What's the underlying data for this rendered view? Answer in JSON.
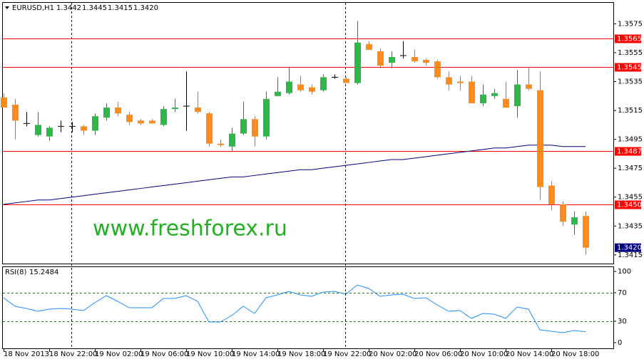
{
  "chart_data": [
    {
      "type": "candlestick",
      "title": "EURUSD,H1",
      "annotation": "www.freshforex.ru",
      "categories": [
        "18 Nov 2013",
        null,
        null,
        null,
        "18 Nov 22:00",
        null,
        null,
        null,
        "19 Nov 02:00",
        null,
        null,
        null,
        "19 Nov 06:00",
        null,
        null,
        null,
        "19 Nov 10:00",
        null,
        null,
        null,
        "19 Nov 14:00",
        null,
        null,
        null,
        "19 Nov 18:00",
        null,
        null,
        null,
        "19 Nov 22:00",
        null,
        null,
        null,
        "20 Nov 02:00",
        null,
        null,
        null,
        "20 Nov 06:00",
        null,
        null,
        null,
        "20 Nov 10:00",
        null,
        null,
        null,
        "20 Nov 14:00",
        null,
        null,
        null,
        "20 Nov 18:00",
        null,
        null,
        null
      ],
      "open": [
        1.3524,
        1.3519,
        1.3506,
        1.3498,
        1.3497,
        1.3504,
        1.3504,
        1.3504,
        1.3501,
        1.351,
        1.3517,
        1.3512,
        1.3508,
        1.3508,
        1.3505,
        1.3516,
        1.3518,
        1.3517,
        1.3513,
        1.3492,
        1.349,
        1.3499,
        1.3509,
        1.3497,
        1.3525,
        1.3527,
        1.3533,
        1.3531,
        1.3529,
        1.3538,
        1.3537,
        1.3534,
        1.3561,
        1.3556,
        1.3548,
        1.3553,
        1.3552,
        1.355,
        1.3549,
        1.3538,
        1.3535,
        1.3535,
        1.352,
        1.3525,
        1.3523,
        1.3518,
        1.3533,
        1.3529,
        1.3463,
        1.345,
        1.3436,
        1.3442
      ],
      "high": [
        1.3527,
        1.3523,
        1.3514,
        1.3514,
        1.3504,
        1.3508,
        1.3507,
        1.3505,
        1.3513,
        1.352,
        1.3521,
        1.3514,
        1.3509,
        1.3509,
        1.3518,
        1.3523,
        1.3542,
        1.3528,
        1.3514,
        1.3495,
        1.3503,
        1.3521,
        1.3511,
        1.3528,
        1.3538,
        1.3545,
        1.3539,
        1.3533,
        1.354,
        1.354,
        1.3538,
        1.3577,
        1.3563,
        1.3558,
        1.3556,
        1.3563,
        1.3557,
        1.3551,
        1.355,
        1.3542,
        1.3539,
        1.3539,
        1.3533,
        1.353,
        1.3535,
        1.3543,
        1.3545,
        1.3542,
        1.3466,
        1.3452,
        1.3445,
        1.3445
      ],
      "low": [
        1.3517,
        1.3495,
        1.3504,
        1.3497,
        1.3494,
        1.35,
        1.35,
        1.3498,
        1.3498,
        1.3508,
        1.3511,
        1.3505,
        1.3505,
        1.3506,
        1.3504,
        1.3514,
        1.3501,
        1.3513,
        1.349,
        1.349,
        1.3487,
        1.3498,
        1.349,
        1.3495,
        1.3525,
        1.3526,
        1.3528,
        1.3526,
        1.3528,
        1.3537,
        1.3534,
        1.3533,
        1.3557,
        1.3544,
        1.3544,
        1.3551,
        1.3548,
        1.3546,
        1.3537,
        1.3529,
        1.3529,
        1.352,
        1.3518,
        1.3523,
        1.3517,
        1.351,
        1.3529,
        1.3453,
        1.3446,
        1.3435,
        1.3429,
        1.3415
      ],
      "close": [
        1.3517,
        1.3508,
        1.3506,
        1.3505,
        1.3503,
        1.3504,
        1.3504,
        1.3501,
        1.3511,
        1.3517,
        1.3513,
        1.3507,
        1.3506,
        1.3506,
        1.3516,
        1.3517,
        1.3518,
        1.3514,
        1.3492,
        1.3491,
        1.3499,
        1.3509,
        1.3497,
        1.3523,
        1.3528,
        1.3535,
        1.3529,
        1.3528,
        1.3538,
        1.3538,
        1.3534,
        1.3562,
        1.3557,
        1.3546,
        1.3552,
        1.3553,
        1.3549,
        1.3548,
        1.3538,
        1.3533,
        1.3534,
        1.352,
        1.3526,
        1.3527,
        1.3517,
        1.3533,
        1.353,
        1.3462,
        1.345,
        1.3438,
        1.3441,
        1.342
      ],
      "up_color": "#2fb84a",
      "down_color": "#ff8c1a",
      "doji_color": "#000000",
      "moving_average": {
        "color": "#000080",
        "values": [
          1.345,
          1.3451,
          1.3452,
          1.3453,
          1.3453,
          1.3454,
          1.3455,
          1.3456,
          1.3457,
          1.3458,
          1.3459,
          1.346,
          1.3461,
          1.3462,
          1.3463,
          1.3464,
          1.3465,
          1.3466,
          1.3467,
          1.3468,
          1.3469,
          1.3469,
          1.347,
          1.3471,
          1.3472,
          1.3473,
          1.3474,
          1.3474,
          1.3475,
          1.3476,
          1.3477,
          1.3478,
          1.3479,
          1.348,
          1.3481,
          1.3481,
          1.3482,
          1.3483,
          1.3484,
          1.3485,
          1.3486,
          1.3487,
          1.3488,
          1.3489,
          1.3489,
          1.349,
          1.3491,
          1.3491,
          1.3491,
          1.349,
          1.349,
          1.349
        ]
      },
      "levels": [
        1.3565,
        1.3545,
        1.3487,
        {
          "value": 1.345,
          "label": "1.3450"
        }
      ],
      "level_color": "#ff0000",
      "current_price": {
        "value": 1.342,
        "label": "1.3420"
      },
      "current_price_color": "#000080",
      "ylim": [
        1.3409,
        1.359
      ],
      "yticks": [
        1.3575,
        1.3555,
        1.3535,
        1.3515,
        1.3495,
        1.3475,
        1.3455,
        1.3435,
        1.3415
      ]
    },
    {
      "type": "line",
      "title": "RSI(8)",
      "color": "#1e90ff",
      "values": [
        63,
        51,
        48,
        44,
        47,
        48,
        47,
        45,
        56,
        66,
        58,
        49,
        49,
        49,
        62,
        62,
        66,
        58,
        29,
        29,
        38,
        51,
        41,
        63,
        67,
        72,
        67,
        65,
        71,
        72,
        68,
        81,
        76,
        65,
        67,
        68,
        62,
        63,
        53,
        44,
        45,
        34,
        41,
        40,
        34,
        50,
        47,
        18,
        16,
        14,
        17,
        15.2484
      ],
      "levels": [
        70,
        30
      ],
      "ylim": [
        -9,
        107
      ],
      "yticks": [
        100,
        70,
        30,
        0
      ]
    }
  ]
}
